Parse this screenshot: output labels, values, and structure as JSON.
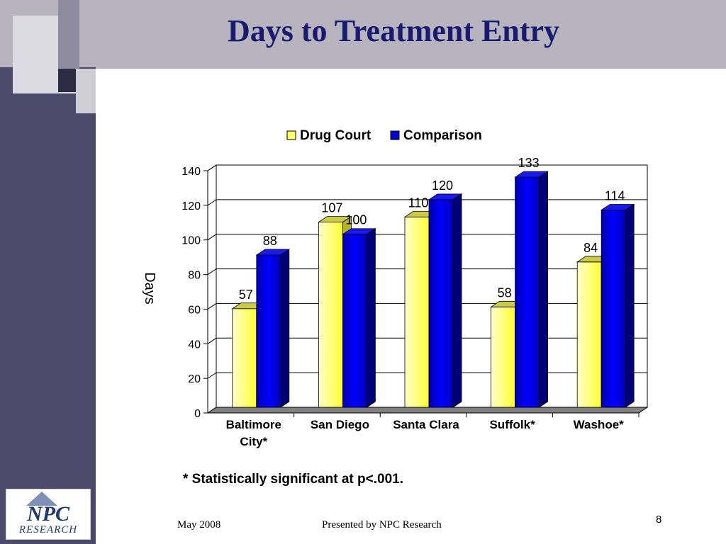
{
  "slide": {
    "title": "Days to Treatment Entry",
    "footnote": "* Statistically significant at p<.001.",
    "footer_date": "May 2008",
    "footer_presenter": "Presented by NPC Research",
    "page_number": "8",
    "logo_text_top": "NPC",
    "logo_text_bottom": "RESEARCH"
  },
  "colors": {
    "drug_court": "#ffff66",
    "comparison": "#0000cc",
    "title": "#1a1a6e",
    "left_band": "#4b4a6b"
  },
  "chart_data": {
    "type": "bar",
    "title": "",
    "xlabel": "",
    "ylabel": "Days",
    "ylim": [
      0,
      140
    ],
    "yticks": [
      0,
      20,
      40,
      60,
      80,
      100,
      120,
      140
    ],
    "grid": true,
    "legend_position": "top",
    "categories": [
      "Baltimore City*",
      "San Diego",
      "Santa Clara",
      "Suffolk*",
      "Washoe*"
    ],
    "series": [
      {
        "name": "Drug Court",
        "values": [
          57,
          107,
          110,
          58,
          84
        ]
      },
      {
        "name": "Comparison",
        "values": [
          88,
          100,
          120,
          133,
          114
        ]
      }
    ]
  }
}
